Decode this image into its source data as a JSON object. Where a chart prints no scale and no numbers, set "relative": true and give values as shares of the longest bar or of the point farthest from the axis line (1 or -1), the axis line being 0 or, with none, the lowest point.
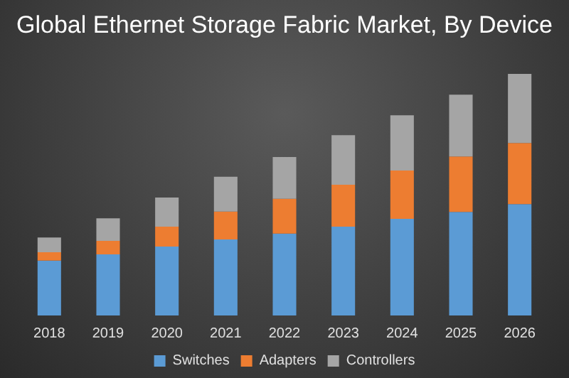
{
  "chart_data": {
    "type": "bar",
    "title": "Global Ethernet Storage Fabric Market, By Device",
    "relative": true,
    "stacked": true,
    "legend": "bottom",
    "categories": [
      "2018",
      "2019",
      "2020",
      "2021",
      "2022",
      "2023",
      "2024",
      "2025",
      "2026"
    ],
    "series": [
      {
        "name": "Switches",
        "color": "#5b9bd5",
        "values": [
          0.227,
          0.253,
          0.285,
          0.315,
          0.339,
          0.368,
          0.4,
          0.429,
          0.461
        ]
      },
      {
        "name": "Adapters",
        "color": "#ed7d31",
        "values": [
          0.035,
          0.056,
          0.083,
          0.115,
          0.144,
          0.173,
          0.2,
          0.229,
          0.253
        ]
      },
      {
        "name": "Controllers",
        "color": "#a5a5a5",
        "values": [
          0.061,
          0.093,
          0.12,
          0.144,
          0.173,
          0.205,
          0.229,
          0.256,
          0.286
        ]
      }
    ]
  }
}
